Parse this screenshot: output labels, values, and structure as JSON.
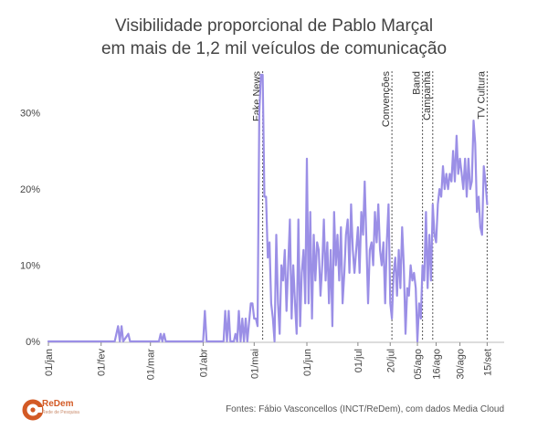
{
  "title_lines": [
    "Visibilidade proporcional de Pablo Marçal",
    "em mais de 1,2 mil veículos de comunicação"
  ],
  "source": "Fontes: Fábio Vasconcellos (INCT/ReDem), com dados Media Cloud",
  "logo": {
    "text": "ReDem",
    "subtext": "Rede de Pesquisa"
  },
  "colors": {
    "line": "#9b8fe6",
    "annotation": "#555555",
    "axis": "#444444",
    "logo": "#d35a25"
  },
  "chart_data": {
    "type": "line",
    "y_unit": "%",
    "ylim": [
      0,
      35
    ],
    "y_ticks": [
      0,
      10,
      20,
      30
    ],
    "y_tick_labels": [
      "0%",
      "10%",
      "20%",
      "30%"
    ],
    "x_range": [
      "2024-01-01",
      "2024-09-25"
    ],
    "x_ticks": [
      {
        "date": "2024-01-01",
        "label": "01/jan"
      },
      {
        "date": "2024-02-01",
        "label": "01/fev"
      },
      {
        "date": "2024-03-01",
        "label": "01/mar"
      },
      {
        "date": "2024-04-01",
        "label": "01/abr"
      },
      {
        "date": "2024-05-01",
        "label": "01/mai"
      },
      {
        "date": "2024-06-01",
        "label": "01/jun"
      },
      {
        "date": "2024-07-01",
        "label": "01/jul"
      },
      {
        "date": "2024-07-20",
        "label": "20/jul"
      },
      {
        "date": "2024-08-05",
        "label": "05/ago"
      },
      {
        "date": "2024-08-16",
        "label": "16/ago"
      },
      {
        "date": "2024-08-30",
        "label": "30/ago"
      },
      {
        "date": "2024-09-15",
        "label": "15/set"
      }
    ],
    "annotations": [
      {
        "date": "2024-05-06",
        "label": "Fake News"
      },
      {
        "date": "2024-07-21",
        "label": "Convenções"
      },
      {
        "date": "2024-08-08",
        "label": "Band"
      },
      {
        "date": "2024-08-14",
        "label": "Campanha"
      },
      {
        "date": "2024-09-15",
        "label": "TV Cultura"
      }
    ],
    "grid": false,
    "series": [
      {
        "points": [
          [
            "2024-01-01",
            0
          ],
          [
            "2024-02-09",
            0
          ],
          [
            "2024-02-11",
            2
          ],
          [
            "2024-02-12",
            0
          ],
          [
            "2024-02-13",
            2
          ],
          [
            "2024-02-14",
            0
          ],
          [
            "2024-02-17",
            1
          ],
          [
            "2024-02-18",
            0
          ],
          [
            "2024-03-06",
            0
          ],
          [
            "2024-03-07",
            1
          ],
          [
            "2024-03-08",
            0
          ],
          [
            "2024-03-09",
            1
          ],
          [
            "2024-03-10",
            0
          ],
          [
            "2024-04-01",
            0
          ],
          [
            "2024-04-02",
            4
          ],
          [
            "2024-04-03",
            0
          ],
          [
            "2024-04-13",
            0
          ],
          [
            "2024-04-14",
            4
          ],
          [
            "2024-04-15",
            0
          ],
          [
            "2024-04-16",
            4
          ],
          [
            "2024-04-17",
            0
          ],
          [
            "2024-04-19",
            0
          ],
          [
            "2024-04-20",
            1
          ],
          [
            "2024-04-21",
            0
          ],
          [
            "2024-04-22",
            4
          ],
          [
            "2024-04-23",
            0
          ],
          [
            "2024-04-24",
            3
          ],
          [
            "2024-04-25",
            0
          ],
          [
            "2024-04-26",
            3
          ],
          [
            "2024-04-27",
            0
          ],
          [
            "2024-04-29",
            5
          ],
          [
            "2024-04-30",
            5
          ],
          [
            "2024-05-01",
            3
          ],
          [
            "2024-05-02",
            3
          ],
          [
            "2024-05-03",
            2
          ],
          [
            "2024-05-04",
            30
          ],
          [
            "2024-05-05",
            35
          ],
          [
            "2024-05-06",
            35
          ],
          [
            "2024-05-07",
            19
          ],
          [
            "2024-05-08",
            19
          ],
          [
            "2024-05-09",
            11
          ],
          [
            "2024-05-10",
            13
          ],
          [
            "2024-05-11",
            5
          ],
          [
            "2024-05-12",
            3
          ],
          [
            "2024-05-13",
            0
          ],
          [
            "2024-05-14",
            14
          ],
          [
            "2024-05-15",
            5
          ],
          [
            "2024-05-16",
            1
          ],
          [
            "2024-05-17",
            10
          ],
          [
            "2024-05-18",
            8
          ],
          [
            "2024-05-19",
            12
          ],
          [
            "2024-05-20",
            4
          ],
          [
            "2024-05-22",
            16
          ],
          [
            "2024-05-23",
            3
          ],
          [
            "2024-05-24",
            10
          ],
          [
            "2024-05-25",
            5
          ],
          [
            "2024-05-26",
            1
          ],
          [
            "2024-05-27",
            16
          ],
          [
            "2024-05-28",
            2
          ],
          [
            "2024-05-29",
            9
          ],
          [
            "2024-05-30",
            12
          ],
          [
            "2024-05-31",
            5
          ],
          [
            "2024-06-01",
            24
          ],
          [
            "2024-06-02",
            5
          ],
          [
            "2024-06-03",
            17
          ],
          [
            "2024-06-04",
            3
          ],
          [
            "2024-06-05",
            14
          ],
          [
            "2024-06-06",
            8
          ],
          [
            "2024-06-07",
            13
          ],
          [
            "2024-06-08",
            12
          ],
          [
            "2024-06-09",
            6
          ],
          [
            "2024-06-10",
            10
          ],
          [
            "2024-06-11",
            16
          ],
          [
            "2024-06-12",
            8
          ],
          [
            "2024-06-13",
            13
          ],
          [
            "2024-06-14",
            5
          ],
          [
            "2024-06-15",
            12
          ],
          [
            "2024-06-16",
            2
          ],
          [
            "2024-06-17",
            17
          ],
          [
            "2024-06-18",
            10
          ],
          [
            "2024-06-19",
            14
          ],
          [
            "2024-06-20",
            8
          ],
          [
            "2024-06-21",
            15
          ],
          [
            "2024-06-22",
            5
          ],
          [
            "2024-06-23",
            9
          ],
          [
            "2024-06-24",
            14
          ],
          [
            "2024-06-25",
            16
          ],
          [
            "2024-06-26",
            9
          ],
          [
            "2024-06-27",
            18
          ],
          [
            "2024-06-28",
            12
          ],
          [
            "2024-06-29",
            9
          ],
          [
            "2024-07-01",
            15
          ],
          [
            "2024-07-02",
            9
          ],
          [
            "2024-07-03",
            17
          ],
          [
            "2024-07-04",
            14
          ],
          [
            "2024-07-05",
            21
          ],
          [
            "2024-07-06",
            13
          ],
          [
            "2024-07-07",
            5
          ],
          [
            "2024-07-08",
            12
          ],
          [
            "2024-07-09",
            13
          ],
          [
            "2024-07-10",
            10
          ],
          [
            "2024-07-11",
            17
          ],
          [
            "2024-07-12",
            13
          ],
          [
            "2024-07-13",
            18
          ],
          [
            "2024-07-14",
            12
          ],
          [
            "2024-07-15",
            10
          ],
          [
            "2024-07-16",
            13
          ],
          [
            "2024-07-17",
            5
          ],
          [
            "2024-07-18",
            13
          ],
          [
            "2024-07-19",
            18
          ],
          [
            "2024-07-20",
            5
          ],
          [
            "2024-07-21",
            3
          ],
          [
            "2024-07-22",
            9
          ],
          [
            "2024-07-23",
            11
          ],
          [
            "2024-07-24",
            6
          ],
          [
            "2024-07-25",
            12
          ],
          [
            "2024-07-26",
            7
          ],
          [
            "2024-07-27",
            15
          ],
          [
            "2024-07-28",
            10
          ],
          [
            "2024-07-29",
            1
          ],
          [
            "2024-07-30",
            7
          ],
          [
            "2024-07-31",
            6
          ],
          [
            "2024-08-01",
            10
          ],
          [
            "2024-08-02",
            8
          ],
          [
            "2024-08-03",
            9
          ],
          [
            "2024-08-04",
            7
          ],
          [
            "2024-08-05",
            0
          ],
          [
            "2024-08-06",
            5
          ],
          [
            "2024-08-07",
            3
          ],
          [
            "2024-08-08",
            10
          ],
          [
            "2024-08-09",
            8
          ],
          [
            "2024-08-10",
            17
          ],
          [
            "2024-08-11",
            7
          ],
          [
            "2024-08-12",
            14
          ],
          [
            "2024-08-13",
            8
          ],
          [
            "2024-08-14",
            18
          ],
          [
            "2024-08-15",
            14
          ],
          [
            "2024-08-16",
            13
          ],
          [
            "2024-08-17",
            18
          ],
          [
            "2024-08-18",
            20
          ],
          [
            "2024-08-19",
            19
          ],
          [
            "2024-08-20",
            23
          ],
          [
            "2024-08-21",
            20
          ],
          [
            "2024-08-22",
            22
          ],
          [
            "2024-08-23",
            20
          ],
          [
            "2024-08-24",
            22
          ],
          [
            "2024-08-25",
            21
          ],
          [
            "2024-08-26",
            25
          ],
          [
            "2024-08-27",
            21
          ],
          [
            "2024-08-28",
            27
          ],
          [
            "2024-08-29",
            22
          ],
          [
            "2024-08-30",
            24
          ],
          [
            "2024-08-31",
            22
          ],
          [
            "2024-09-01",
            20
          ],
          [
            "2024-09-02",
            24
          ],
          [
            "2024-09-03",
            19
          ],
          [
            "2024-09-04",
            24
          ],
          [
            "2024-09-05",
            20
          ],
          [
            "2024-09-06",
            21
          ],
          [
            "2024-09-07",
            29
          ],
          [
            "2024-09-08",
            26
          ],
          [
            "2024-09-09",
            17
          ],
          [
            "2024-09-10",
            19
          ],
          [
            "2024-09-11",
            15
          ],
          [
            "2024-09-12",
            14
          ],
          [
            "2024-09-13",
            23
          ],
          [
            "2024-09-14",
            21
          ],
          [
            "2024-09-15",
            18
          ]
        ]
      }
    ]
  }
}
